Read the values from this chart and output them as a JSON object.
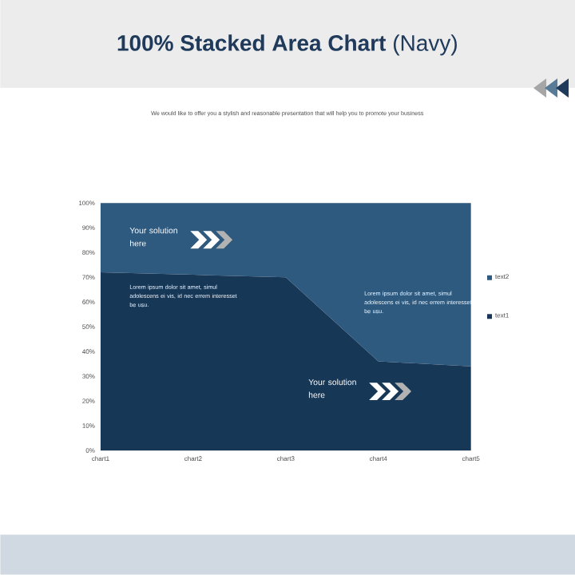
{
  "chart_data": {
    "type": "area",
    "stacked": true,
    "title": "**100% Stacked Area Chart** (Navy)",
    "subtitle": "We would like to offer you a stylish and reasonable presentation that will help you to promote your business",
    "categories": [
      "chart1",
      "chart2",
      "chart3",
      "chart4",
      "chart5"
    ],
    "series": [
      {
        "name": "text1",
        "color": "#173757",
        "values": [
          72,
          71,
          70,
          36,
          34
        ]
      },
      {
        "name": "text2",
        "color": "#2e5a7f",
        "values": [
          28,
          29,
          30,
          64,
          66
        ]
      }
    ],
    "ylim": [
      0,
      100
    ],
    "yticks": [
      {
        "value": 0,
        "label": "0%"
      },
      {
        "value": 10,
        "label": "10%"
      },
      {
        "value": 20,
        "label": "20%"
      },
      {
        "value": 30,
        "label": "30%"
      },
      {
        "value": 40,
        "label": "40%"
      },
      {
        "value": 50,
        "label": "50%"
      },
      {
        "value": 60,
        "label": "60%"
      },
      {
        "value": 70,
        "label": "70%"
      },
      {
        "value": 80,
        "label": "80%"
      },
      {
        "value": 90,
        "label": "90%"
      },
      {
        "value": 100,
        "label": "100%"
      }
    ],
    "legend": "right",
    "annotations": [
      "Your solution here",
      "Lorem ipsum dolor sit amet, simul adolescens ei vis, id nec errem interesset be usu.",
      "Lorem ipsum dolor sit amet, simul adolescens ei vis, id nec errem interesset be usu.",
      "Your solution here"
    ]
  }
}
